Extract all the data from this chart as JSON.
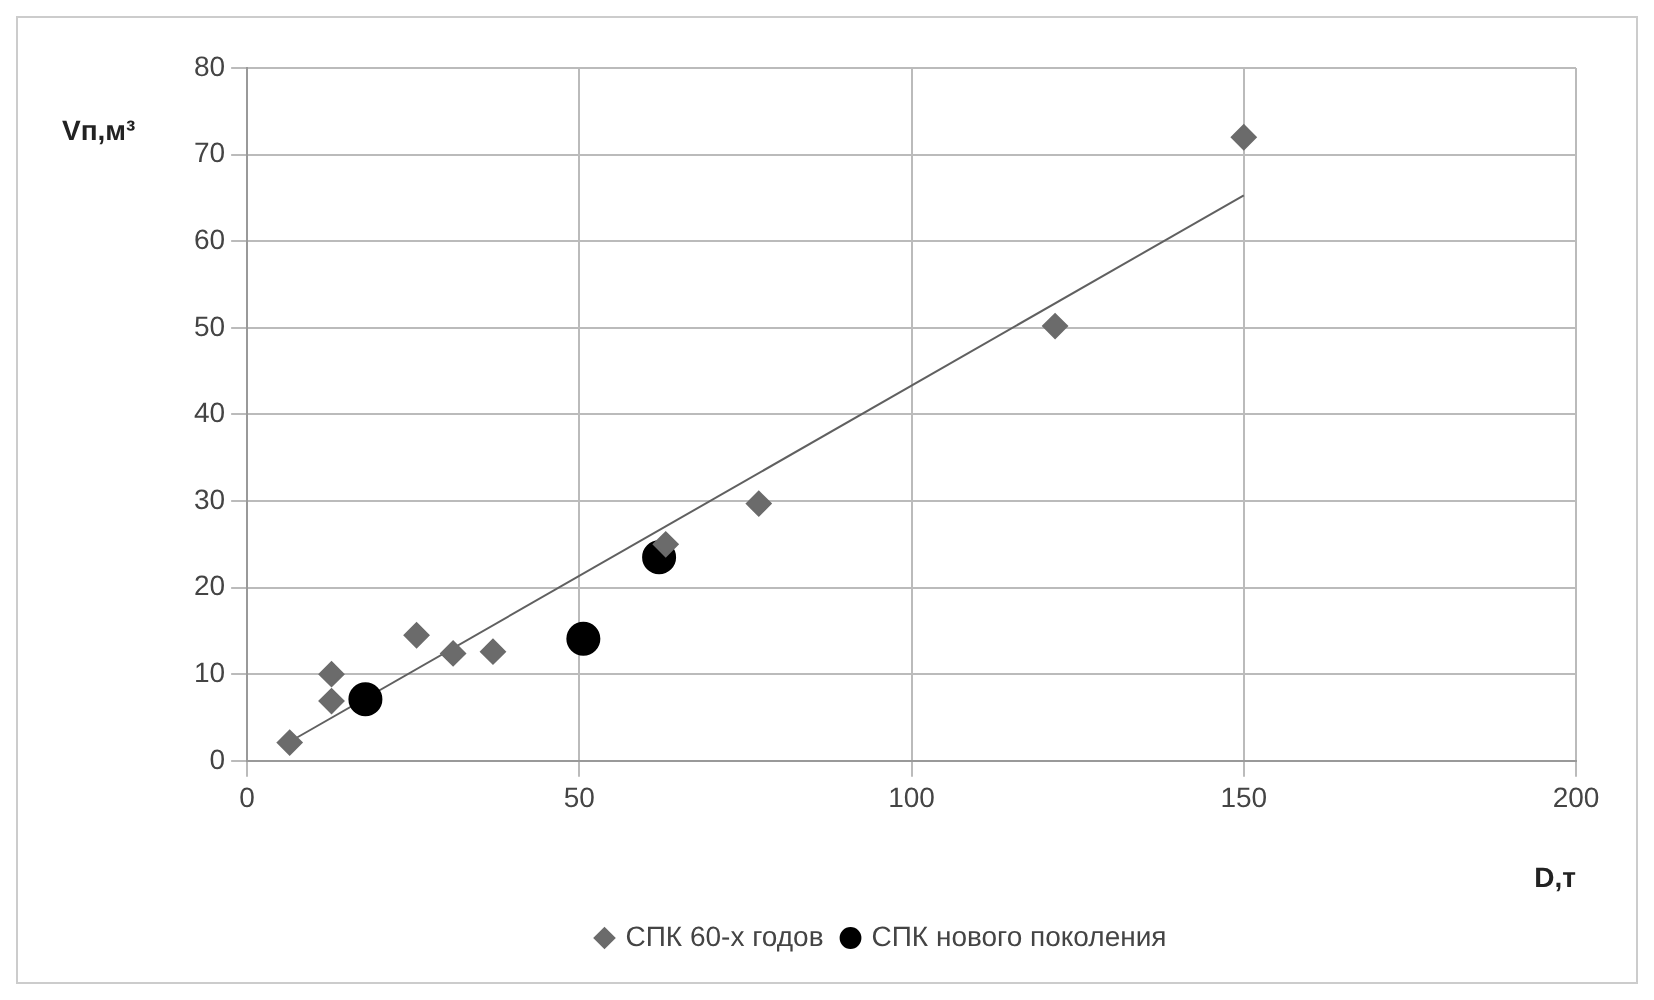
{
  "chart_data": {
    "type": "scatter",
    "xlabel": "D,т",
    "ylabel": "Vп,м³",
    "xlim": [
      0,
      200
    ],
    "xticks": [
      0,
      50,
      100,
      150,
      200
    ],
    "ylim": [
      0,
      80
    ],
    "yticks": [
      0,
      10,
      20,
      30,
      40,
      50,
      60,
      70,
      80
    ],
    "grid": true,
    "legend": "bottom",
    "series": [
      {
        "name": "СПК 60-х годов",
        "color": "#6b6b6b",
        "marker": "diamond",
        "x": [
          6.4,
          12.7,
          12.7,
          25.5,
          31,
          37,
          63,
          77,
          121.6,
          150
        ],
        "values": [
          2.1,
          10,
          6.9,
          14.5,
          12.4,
          12.6,
          25,
          29.7,
          50.2,
          72
        ]
      },
      {
        "name": "СПК нового поколения",
        "color": "#000000",
        "marker": "circle",
        "x": [
          17.8,
          50.6,
          62
        ],
        "values": [
          7.1,
          14.1,
          23.5
        ]
      },
      {
        "type": "line",
        "color": "#606060",
        "marker": "none",
        "x": [
          6.4,
          150
        ],
        "values": [
          2.2,
          65.3
        ]
      }
    ]
  }
}
